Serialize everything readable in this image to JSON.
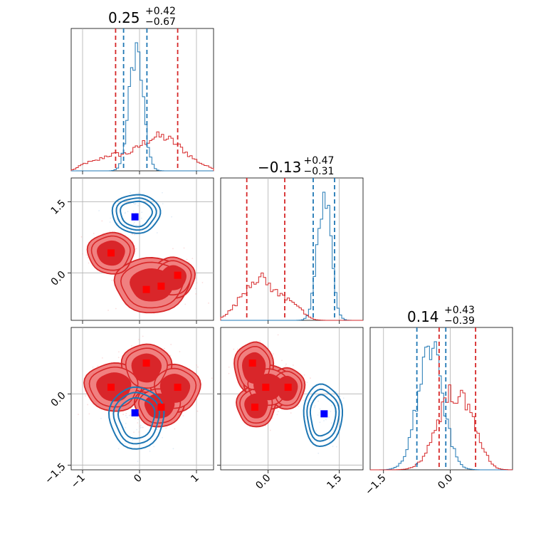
{
  "chart_data": {
    "type": "scatter",
    "panels": [
      {
        "name": "param-1 marginal",
        "kind": "histogram",
        "title": {
          "main": "0.25",
          "sup": "+0.42",
          "sub": "−0.67"
        },
        "x_ticks": [],
        "xlim": [
          -1.2,
          1.3
        ],
        "vlines": [
          {
            "color": "#d62728",
            "x": [
              -0.42,
              0.67
            ]
          },
          {
            "color": "#1f77b4",
            "x": [
              -0.28,
              0.13
            ]
          }
        ]
      },
      {
        "name": "param-2 vs param-1",
        "kind": "contour",
        "y_ticks": [
          "1.5",
          "0.0"
        ],
        "xlim": [
          -1.2,
          1.3
        ],
        "ylim": [
          -1.0,
          2.0
        ],
        "markers": [
          {
            "color": "#0000ff",
            "x": -0.08,
            "y": 1.18
          },
          {
            "color": "#ff0000",
            "x": -0.5,
            "y": 0.42
          },
          {
            "color": "#ff0000",
            "x": 0.12,
            "y": -0.35
          },
          {
            "color": "#ff0000",
            "x": 0.38,
            "y": -0.28
          },
          {
            "color": "#ff0000",
            "x": 0.67,
            "y": -0.05
          }
        ]
      },
      {
        "name": "param-2 marginal",
        "kind": "histogram",
        "title": {
          "main": "−0.13",
          "sup": "+0.47",
          "sub": "−0.31"
        },
        "xlim": [
          -1.0,
          2.0
        ],
        "vlines": [
          {
            "color": "#d62728",
            "x": [
              -0.45,
              0.35
            ]
          },
          {
            "color": "#1f77b4",
            "x": [
              0.95,
              1.4
            ]
          }
        ]
      },
      {
        "name": "param-3 vs param-1",
        "kind": "contour",
        "x_ticks": [
          "−1",
          "0",
          "1"
        ],
        "y_ticks": [
          "0.0",
          "−1.5"
        ],
        "xlim": [
          -1.2,
          1.3
        ],
        "ylim": [
          -1.6,
          1.4
        ],
        "markers": [
          {
            "color": "#0000ff",
            "x": -0.08,
            "y": -0.4
          },
          {
            "color": "#ff0000",
            "x": -0.5,
            "y": 0.14
          },
          {
            "color": "#ff0000",
            "x": 0.12,
            "y": 0.65
          },
          {
            "color": "#ff0000",
            "x": 0.38,
            "y": -0.28
          },
          {
            "color": "#ff0000",
            "x": 0.67,
            "y": 0.14
          }
        ]
      },
      {
        "name": "param-3 vs param-2",
        "kind": "contour",
        "x_ticks": [
          "0.0",
          "1.5"
        ],
        "xlim": [
          -1.0,
          2.0
        ],
        "ylim": [
          -1.6,
          1.4
        ],
        "markers": [
          {
            "color": "#0000ff",
            "x": 1.18,
            "y": -0.42
          },
          {
            "color": "#ff0000",
            "x": -0.33,
            "y": 0.65
          },
          {
            "color": "#ff0000",
            "x": -0.05,
            "y": 0.14
          },
          {
            "color": "#ff0000",
            "x": 0.42,
            "y": 0.14
          },
          {
            "color": "#ff0000",
            "x": -0.28,
            "y": -0.28
          }
        ]
      },
      {
        "name": "param-3 marginal",
        "kind": "histogram",
        "title": {
          "main": "0.14",
          "sup": "+0.43",
          "sub": "−0.39"
        },
        "x_ticks": [
          "−1.5",
          "0.0"
        ],
        "xlim": [
          -1.8,
          1.4
        ],
        "vlines": [
          {
            "color": "#d62728",
            "x": [
              -0.25,
              0.57
            ]
          },
          {
            "color": "#1f77b4",
            "x": [
              -0.75,
              -0.1
            ]
          }
        ]
      }
    ],
    "colors": {
      "red": "#d62728",
      "blue": "#1f77b4",
      "red_fill": "#f08080"
    }
  }
}
